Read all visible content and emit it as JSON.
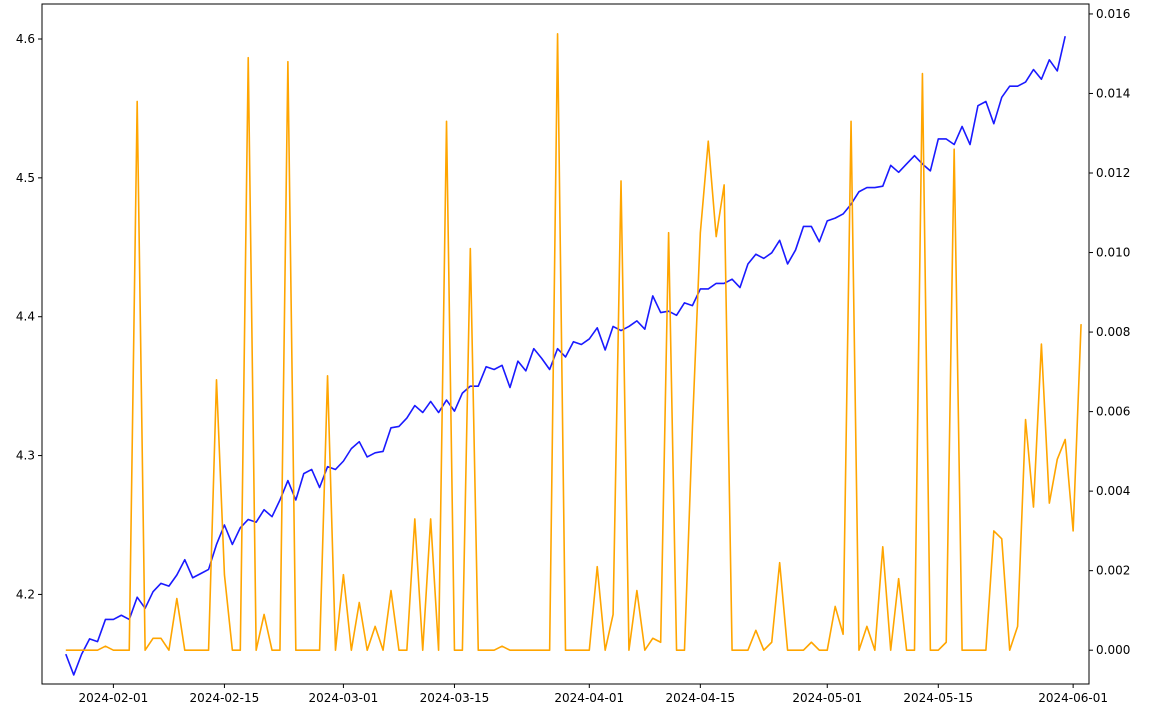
{
  "chart_data": {
    "type": "line",
    "title": "",
    "xlabel": "",
    "ylabel_left": "",
    "ylabel_right": "",
    "x_range": [
      "2024-01-23",
      "2024-06-03"
    ],
    "ylim_left": [
      4.1355,
      4.6252
    ],
    "ylim_right": [
      -0.00085,
      0.01625
    ],
    "grid": false,
    "x_tick_labels": [
      "2024-02-01",
      "2024-02-15",
      "2024-03-01",
      "2024-03-15",
      "2024-04-01",
      "2024-04-15",
      "2024-05-01",
      "2024-05-15",
      "2024-06-01"
    ],
    "y_left_tick_labels": [
      "4.2",
      "4.3",
      "4.4",
      "4.5",
      "4.6"
    ],
    "y_right_tick_labels": [
      "0.000",
      "0.002",
      "0.004",
      "0.006",
      "0.008",
      "0.010",
      "0.012",
      "0.014",
      "0.016"
    ],
    "x_start": "2024-01-26",
    "series": [
      {
        "axis": "left",
        "color": "#1a1aff",
        "values": [
          4.157,
          4.142,
          4.157,
          4.168,
          4.166,
          4.182,
          4.182,
          4.185,
          4.182,
          4.198,
          4.19,
          4.202,
          4.208,
          4.206,
          4.214,
          4.225,
          4.212,
          4.215,
          4.218,
          4.236,
          4.25,
          4.236,
          4.248,
          4.254,
          4.252,
          4.261,
          4.256,
          4.268,
          4.282,
          4.268,
          4.287,
          4.29,
          4.277,
          4.292,
          4.29,
          4.296,
          4.305,
          4.31,
          4.299,
          4.302,
          4.303,
          4.32,
          4.321,
          4.327,
          4.336,
          4.331,
          4.339,
          4.331,
          4.34,
          4.332,
          4.345,
          4.35,
          4.35,
          4.364,
          4.362,
          4.365,
          4.349,
          4.368,
          4.361,
          4.377,
          4.37,
          4.362,
          4.377,
          4.371,
          4.382,
          4.38,
          4.384,
          4.392,
          4.376,
          4.393,
          4.39,
          4.393,
          4.397,
          4.391,
          4.415,
          4.403,
          4.404,
          4.401,
          4.41,
          4.408,
          4.42,
          4.42,
          4.424,
          4.424,
          4.427,
          4.421,
          4.438,
          4.445,
          4.442,
          4.446,
          4.455,
          4.438,
          4.448,
          4.465,
          4.465,
          4.454,
          4.469,
          4.471,
          4.474,
          4.481,
          4.49,
          4.493,
          4.493,
          4.494,
          4.509,
          4.504,
          4.51,
          4.516,
          4.51,
          4.505,
          4.528,
          4.528,
          4.524,
          4.537,
          4.524,
          4.552,
          4.555,
          4.539,
          4.558,
          4.566,
          4.566,
          4.569,
          4.578,
          4.571,
          4.585,
          4.577,
          4.602
        ]
      },
      {
        "axis": "right",
        "color": "#ffa500",
        "values": [
          0.0,
          0.0,
          0.0,
          0.0,
          0.0,
          0.0001,
          0.0,
          0.0,
          0.0,
          0.0138,
          0.0,
          0.0003,
          0.0003,
          0.0,
          0.0013,
          0.0,
          0.0,
          0.0,
          0.0,
          0.0068,
          0.0019,
          0.0,
          0.0,
          0.0149,
          0.0,
          0.0009,
          0.0,
          0.0,
          0.0148,
          0.0,
          0.0,
          0.0,
          0.0,
          0.0069,
          0.0,
          0.0019,
          0.0,
          0.0012,
          0.0,
          0.0006,
          0.0,
          0.0015,
          0.0,
          0.0,
          0.0033,
          0.0,
          0.0033,
          0.0,
          0.0133,
          0.0,
          0.0,
          0.0101,
          0.0,
          0.0,
          0.0,
          0.0001,
          0.0,
          0.0,
          0.0,
          0.0,
          0.0,
          0.0,
          0.0155,
          0.0,
          0.0,
          0.0,
          0.0,
          0.0021,
          0.0,
          0.0009,
          0.0118,
          0.0,
          0.0015,
          0.0,
          0.0003,
          0.0002,
          0.0105,
          0.0,
          0.0,
          0.0056,
          0.0105,
          0.0128,
          0.0104,
          0.0117,
          0.0,
          0.0,
          0.0,
          0.0005,
          0.0,
          0.0002,
          0.0022,
          0.0,
          0.0,
          0.0,
          0.0002,
          0.0,
          0.0,
          0.0011,
          0.0004,
          0.0133,
          0.0,
          0.0006,
          0.0,
          0.0026,
          0.0,
          0.0018,
          0.0,
          0.0,
          0.0145,
          0.0,
          0.0,
          0.0002,
          0.0126,
          0.0,
          0.0,
          0.0,
          0.0,
          0.003,
          0.0028,
          0.0,
          0.0006,
          0.0058,
          0.0036,
          0.0077,
          0.0037,
          0.0048,
          0.0053,
          0.003,
          0.0082
        ]
      }
    ]
  }
}
